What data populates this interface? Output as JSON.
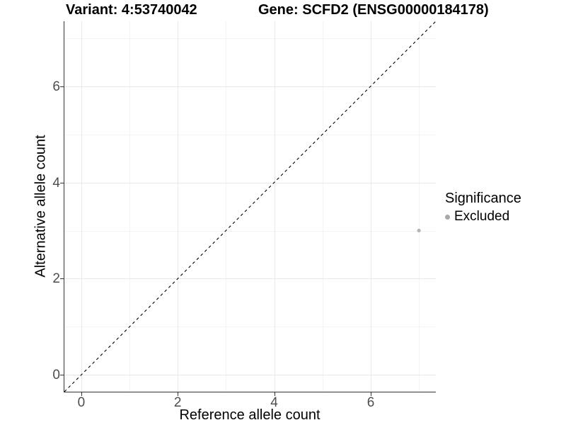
{
  "titles": {
    "variant": "Variant: 4:53740042",
    "gene": "Gene: SCFD2 (ENSG00000184178)"
  },
  "axes": {
    "x": {
      "label": "Reference allele count"
    },
    "y": {
      "label": "Alternative allele count"
    }
  },
  "legend": {
    "title": "Significance",
    "items": [
      {
        "label": "Excluded",
        "color": "#a8a8a8"
      }
    ]
  },
  "colors": {
    "point": "#b3b3b3",
    "grid_major": "#e8e8e8",
    "grid_minor": "#f4f4f4",
    "axis": "#333333",
    "tick_text": "#4d4d4d",
    "reference_line": "#000000"
  },
  "chart_data": {
    "type": "scatter",
    "title": "Variant: 4:53740042   Gene: SCFD2 (ENSG00000184178)",
    "xlabel": "Reference allele count",
    "ylabel": "Alternative allele count",
    "xlim": [
      -0.35,
      7.35
    ],
    "ylim": [
      -0.35,
      7.35
    ],
    "x_ticks": [
      0,
      2,
      4,
      6
    ],
    "y_ticks": [
      0,
      2,
      4,
      6
    ],
    "x_minor": [
      1,
      3,
      5,
      7
    ],
    "y_minor": [
      1,
      3,
      5,
      7
    ],
    "grid": true,
    "legend_position": "right",
    "series": [
      {
        "name": "Excluded",
        "color": "#b3b3b3",
        "points": [
          {
            "x": 7,
            "y": 3
          }
        ]
      }
    ],
    "reference_line": {
      "style": "dashed",
      "equation": "y = x",
      "color": "#000000"
    }
  }
}
